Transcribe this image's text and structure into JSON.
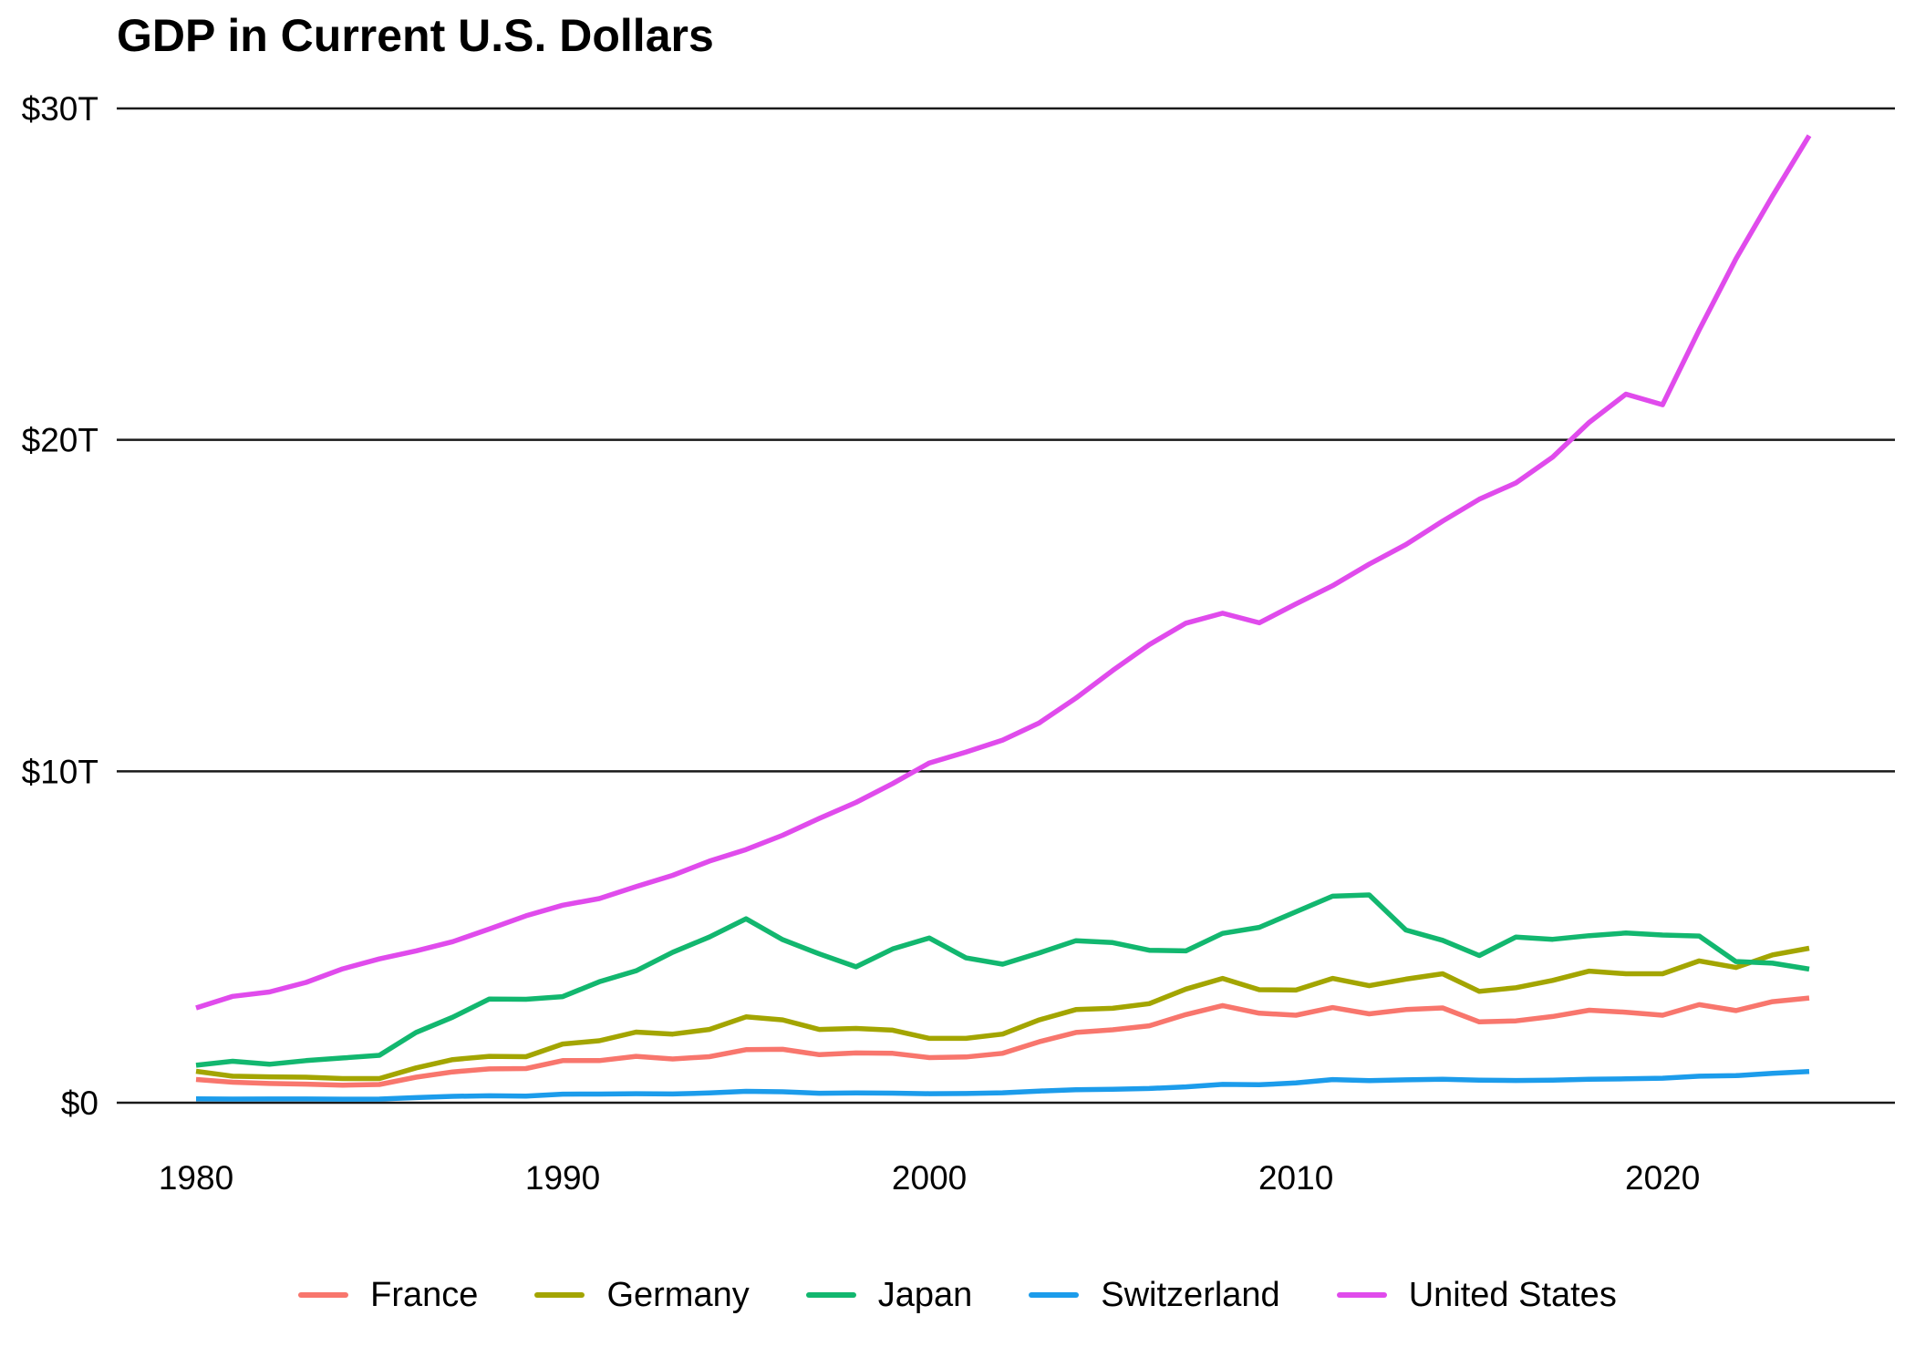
{
  "title": "GDP in Current U.S. Dollars",
  "chart_data": {
    "type": "line",
    "title": "GDP in Current U.S. Dollars",
    "xlabel": "",
    "ylabel": "",
    "unit": "trillions of current U.S. dollars",
    "xlim": [
      1980,
      2024
    ],
    "ylim": [
      0,
      30
    ],
    "grid": "horizontal-only",
    "legend_position": "bottom",
    "x": [
      1980,
      1981,
      1982,
      1983,
      1984,
      1985,
      1986,
      1987,
      1988,
      1989,
      1990,
      1991,
      1992,
      1993,
      1994,
      1995,
      1996,
      1997,
      1998,
      1999,
      2000,
      2001,
      2002,
      2003,
      2004,
      2005,
      2006,
      2007,
      2008,
      2009,
      2010,
      2011,
      2012,
      2013,
      2014,
      2015,
      2016,
      2017,
      2018,
      2019,
      2020,
      2021,
      2022,
      2023,
      2024
    ],
    "y_ticks": [
      {
        "value": 0,
        "label": "$0"
      },
      {
        "value": 10,
        "label": "$10T"
      },
      {
        "value": 20,
        "label": "$20T"
      },
      {
        "value": 30,
        "label": "$30T"
      }
    ],
    "x_ticks": [
      {
        "value": 1980,
        "label": "1980"
      },
      {
        "value": 1990,
        "label": "1990"
      },
      {
        "value": 2000,
        "label": "2000"
      },
      {
        "value": 2010,
        "label": "2010"
      },
      {
        "value": 2020,
        "label": "2020"
      }
    ],
    "series": [
      {
        "name": "France",
        "color": "#F8766D",
        "values": [
          0.7,
          0.62,
          0.58,
          0.56,
          0.53,
          0.55,
          0.77,
          0.93,
          1.02,
          1.03,
          1.27,
          1.27,
          1.4,
          1.32,
          1.39,
          1.6,
          1.61,
          1.45,
          1.5,
          1.49,
          1.36,
          1.38,
          1.49,
          1.84,
          2.12,
          2.2,
          2.32,
          2.66,
          2.93,
          2.7,
          2.64,
          2.87,
          2.68,
          2.81,
          2.86,
          2.44,
          2.47,
          2.6,
          2.79,
          2.73,
          2.64,
          2.96,
          2.78,
          3.05,
          3.16
        ]
      },
      {
        "name": "Germany",
        "color": "#A3A500",
        "values": [
          0.95,
          0.8,
          0.78,
          0.77,
          0.73,
          0.73,
          1.05,
          1.3,
          1.4,
          1.39,
          1.77,
          1.87,
          2.13,
          2.07,
          2.21,
          2.59,
          2.5,
          2.21,
          2.24,
          2.19,
          1.94,
          1.94,
          2.07,
          2.5,
          2.81,
          2.85,
          2.99,
          3.43,
          3.75,
          3.41,
          3.4,
          3.75,
          3.53,
          3.73,
          3.89,
          3.36,
          3.47,
          3.69,
          3.97,
          3.89,
          3.89,
          4.28,
          4.08,
          4.46,
          4.66
        ]
      },
      {
        "name": "Japan",
        "color": "#12B76F",
        "values": [
          1.13,
          1.25,
          1.16,
          1.27,
          1.35,
          1.43,
          2.12,
          2.58,
          3.13,
          3.12,
          3.2,
          3.65,
          3.98,
          4.54,
          5.0,
          5.55,
          4.92,
          4.49,
          4.1,
          4.64,
          4.97,
          4.37,
          4.18,
          4.52,
          4.89,
          4.83,
          4.6,
          4.58,
          5.11,
          5.29,
          5.76,
          6.23,
          6.27,
          5.21,
          4.9,
          4.44,
          5.0,
          4.93,
          5.04,
          5.12,
          5.06,
          5.03,
          4.26,
          4.21,
          4.03
        ]
      },
      {
        "name": "Switzerland",
        "color": "#1C9CEB",
        "values": [
          0.118,
          0.111,
          0.113,
          0.113,
          0.106,
          0.109,
          0.155,
          0.193,
          0.21,
          0.202,
          0.258,
          0.261,
          0.271,
          0.265,
          0.293,
          0.343,
          0.33,
          0.287,
          0.295,
          0.29,
          0.272,
          0.279,
          0.301,
          0.353,
          0.394,
          0.408,
          0.43,
          0.479,
          0.554,
          0.541,
          0.598,
          0.699,
          0.668,
          0.689,
          0.71,
          0.68,
          0.671,
          0.681,
          0.706,
          0.721,
          0.74,
          0.801,
          0.818,
          0.885,
          0.942
        ]
      },
      {
        "name": "United States",
        "color": "#E04BEC",
        "values": [
          2.86,
          3.21,
          3.34,
          3.63,
          4.04,
          4.34,
          4.58,
          4.86,
          5.24,
          5.64,
          5.96,
          6.16,
          6.52,
          6.86,
          7.29,
          7.64,
          8.07,
          8.58,
          9.06,
          9.63,
          10.25,
          10.58,
          10.94,
          11.46,
          12.21,
          13.04,
          13.82,
          14.47,
          14.77,
          14.48,
          15.05,
          15.6,
          16.25,
          16.84,
          17.55,
          18.21,
          18.7,
          19.48,
          20.53,
          21.38,
          21.06,
          23.32,
          25.46,
          27.36,
          29.18
        ]
      }
    ]
  }
}
